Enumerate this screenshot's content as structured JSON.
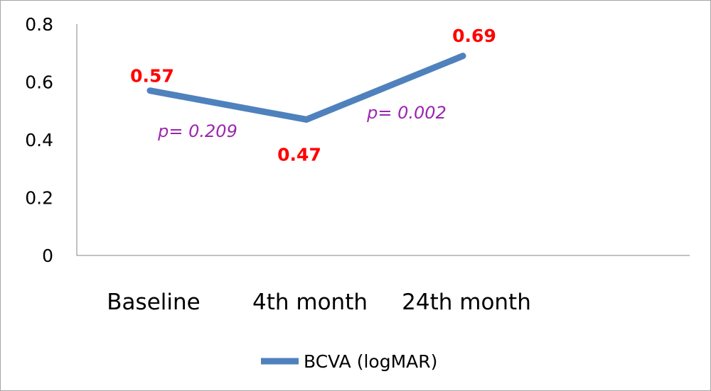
{
  "chart_data": {
    "type": "line",
    "title": "",
    "xlabel": "",
    "ylabel": "",
    "categories": [
      "Baseline",
      "4th month",
      "24th month"
    ],
    "series": [
      {
        "name": "BCVA (logMAR)",
        "values": [
          0.57,
          0.47,
          0.69
        ],
        "data_labels": [
          "0.57",
          "0.47",
          "0.69"
        ],
        "color": "#4f81bd"
      }
    ],
    "ylim": [
      0,
      0.8
    ],
    "yticks": [
      0,
      0.2,
      0.4,
      0.6,
      0.8
    ],
    "ytick_labels": [
      "0",
      "0.2",
      "0.4",
      "0.6",
      "0.8"
    ],
    "grid": false,
    "legend": {
      "position": "bottom",
      "entries": [
        "BCVA (logMAR)"
      ]
    },
    "annotations": [
      {
        "text": "p= 0.209",
        "between": [
          "Baseline",
          "4th month"
        ]
      },
      {
        "text": "p= 0.002",
        "between": [
          "4th month",
          "24th month"
        ]
      }
    ],
    "colors": {
      "line": "#4f81bd",
      "data_label": "#ff0000",
      "annotation": "#9b27b0",
      "axis": "#868686"
    }
  }
}
